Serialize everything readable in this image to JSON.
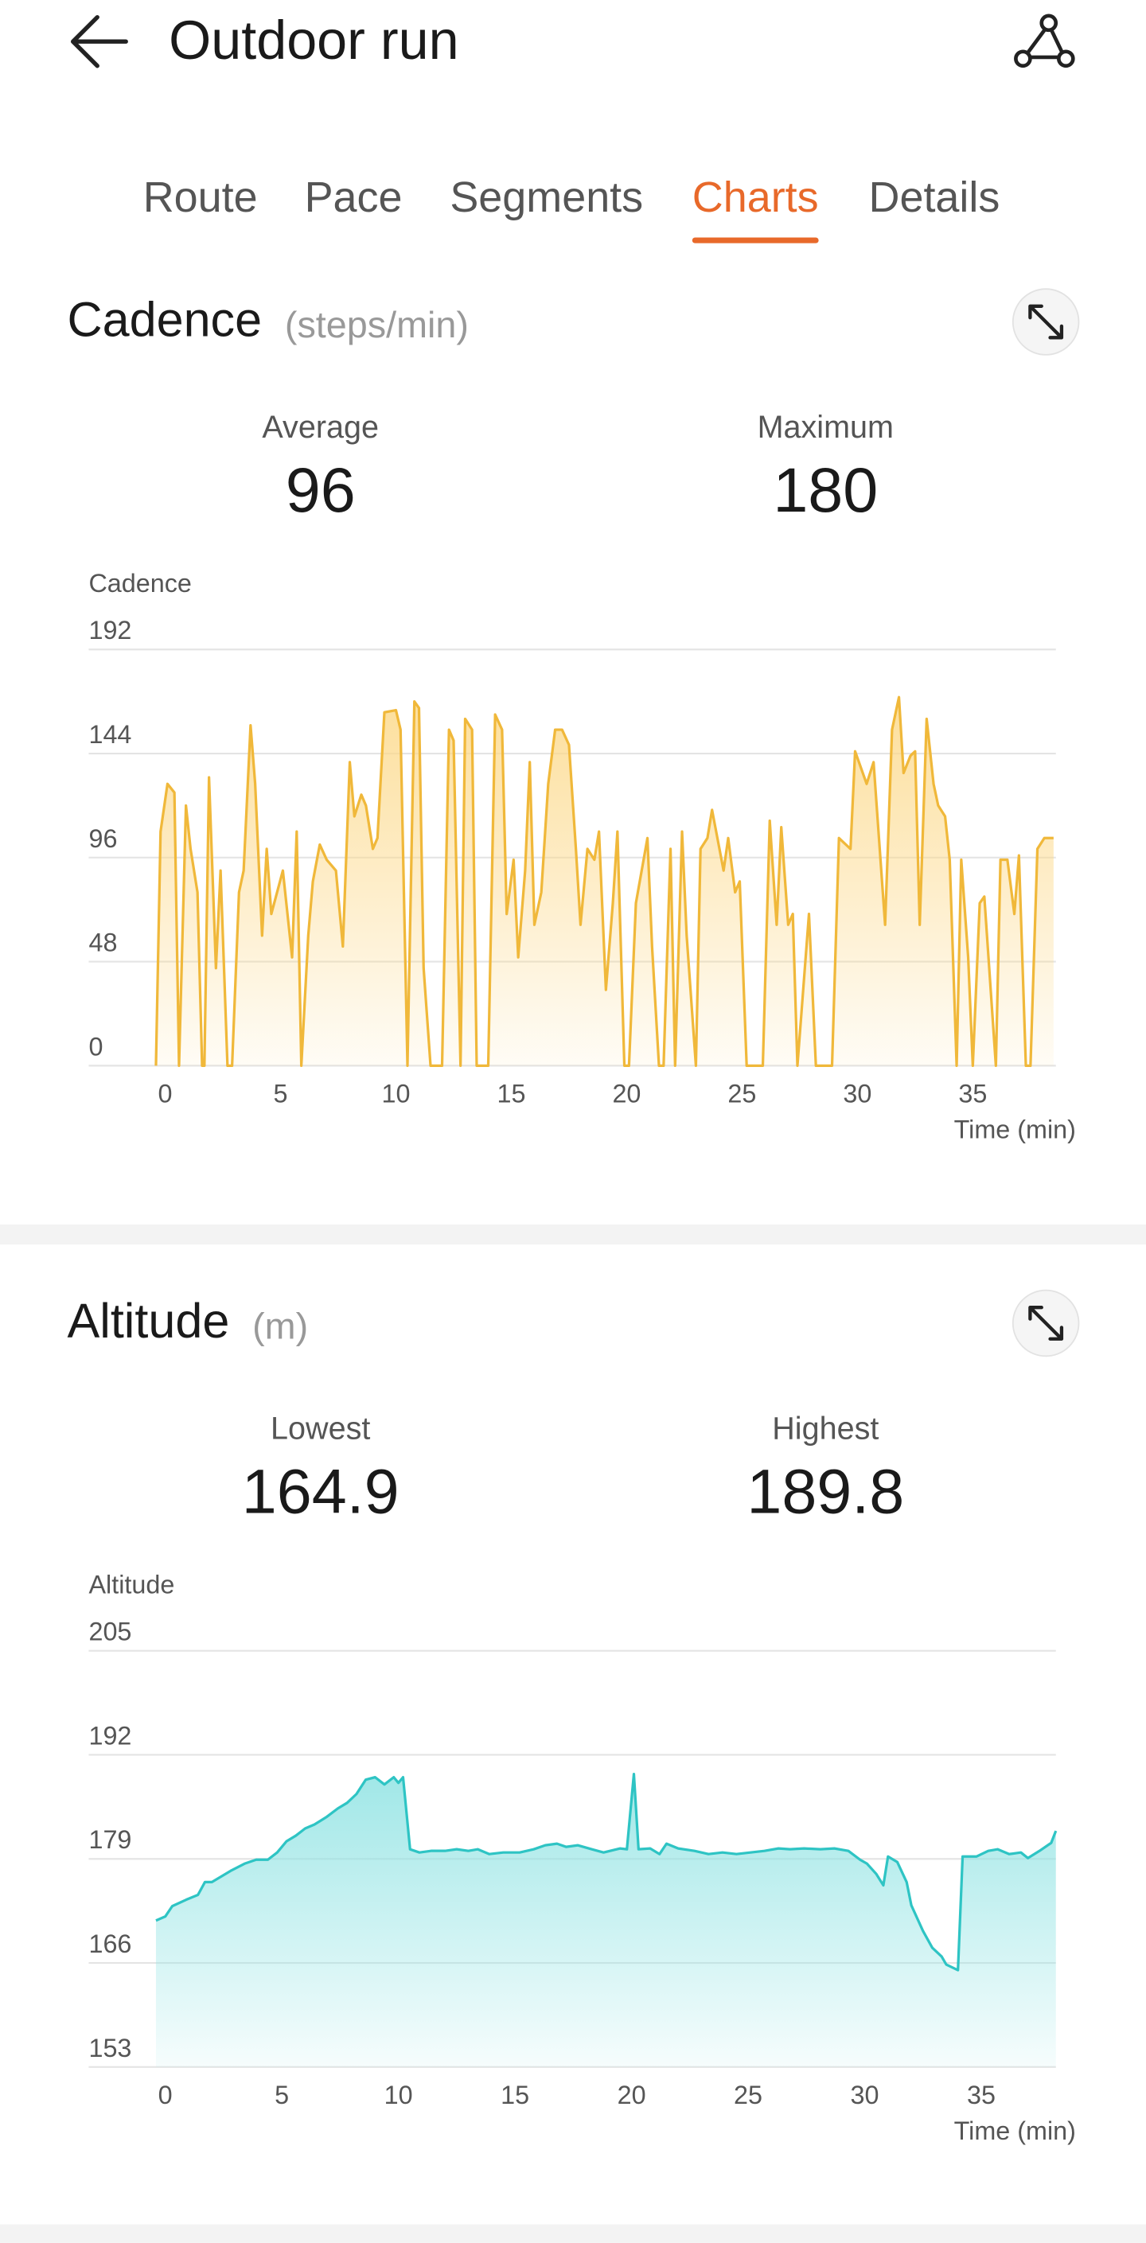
{
  "header": {
    "title": "Outdoor run"
  },
  "tabs": {
    "items": [
      "Route",
      "Pace",
      "Segments",
      "Charts",
      "Details"
    ],
    "active": 3,
    "active_color": "#e8692a"
  },
  "cards": [
    {
      "title": "Cadence",
      "unit": "(steps/min)",
      "stats": [
        {
          "label": "Average",
          "value": 96
        },
        {
          "label": "Maximum",
          "value": 180
        }
      ],
      "chart": {
        "type": "area",
        "y_label": "Cadence",
        "x_label": "Time (min)",
        "color": "#f0b83a",
        "fill": "#fcd98a",
        "ylim": [
          0,
          192
        ],
        "yticks": [
          0,
          48,
          96,
          144,
          192
        ],
        "xlim": [
          -0.4,
          38.6
        ],
        "xticks": [
          0,
          5,
          10,
          15,
          20,
          25,
          30,
          35
        ],
        "x": [
          -0.4,
          -0.2,
          0.1,
          0.4,
          0.6,
          0.9,
          1.1,
          1.4,
          1.6,
          1.7,
          1.9,
          2.2,
          2.4,
          2.7,
          2.9,
          3.2,
          3.4,
          3.7,
          3.9,
          4.2,
          4.4,
          4.6,
          5.1,
          5.5,
          5.7,
          5.9,
          6.2,
          6.4,
          6.7,
          7.0,
          7.4,
          7.7,
          8.0,
          8.2,
          8.5,
          8.7,
          9.0,
          9.2,
          9.5,
          10.0,
          10.2,
          10.5,
          10.8,
          11.0,
          11.2,
          11.5,
          12.0,
          12.3,
          12.5,
          12.8,
          13.0,
          13.3,
          13.5,
          14.0,
          14.3,
          14.6,
          14.8,
          15.1,
          15.3,
          15.6,
          15.8,
          16.0,
          16.3,
          16.6,
          16.9,
          17.2,
          17.5,
          17.8,
          18.0,
          18.3,
          18.6,
          18.8,
          19.1,
          19.4,
          19.6,
          19.9,
          20.1,
          20.4,
          20.9,
          21.1,
          21.4,
          21.6,
          21.9,
          22.1,
          22.4,
          22.6,
          23.0,
          23.2,
          23.5,
          23.7,
          24.2,
          24.4,
          24.7,
          24.9,
          25.2,
          25.9,
          26.2,
          26.5,
          26.7,
          27.0,
          27.2,
          27.4,
          27.9,
          28.2,
          28.9,
          29.2,
          29.7,
          29.9,
          30.4,
          30.7,
          31.2,
          31.5,
          31.8,
          32.0,
          32.3,
          32.5,
          32.7,
          33.0,
          33.3,
          33.5,
          33.8,
          34.0,
          34.3,
          34.5,
          34.8,
          35.0,
          35.3,
          35.5,
          36.0,
          36.2,
          36.5,
          36.8,
          37.0,
          37.3,
          37.5,
          37.8,
          38.1,
          38.5
        ],
        "values": [
          0,
          108,
          130,
          126,
          0,
          120,
          100,
          80,
          0,
          0,
          133,
          45,
          90,
          0,
          0,
          80,
          90,
          157,
          130,
          60,
          100,
          70,
          90,
          50,
          108,
          0,
          60,
          85,
          102,
          95,
          90,
          55,
          140,
          115,
          125,
          120,
          100,
          105,
          163,
          164,
          155,
          0,
          168,
          165,
          45,
          0,
          0,
          155,
          150,
          0,
          160,
          155,
          0,
          0,
          162,
          155,
          70,
          95,
          50,
          90,
          140,
          65,
          80,
          130,
          155,
          155,
          148,
          100,
          65,
          100,
          95,
          108,
          35,
          75,
          108,
          0,
          0,
          75,
          105,
          55,
          0,
          0,
          100,
          0,
          108,
          60,
          0,
          100,
          105,
          118,
          90,
          105,
          80,
          85,
          0,
          0,
          113,
          65,
          110,
          65,
          70,
          0,
          70,
          0,
          0,
          105,
          100,
          145,
          130,
          140,
          65,
          155,
          170,
          135,
          143,
          145,
          65,
          160,
          130,
          120,
          115,
          95,
          0,
          95,
          50,
          0,
          75,
          78,
          0,
          95,
          95,
          70,
          97,
          0,
          0,
          100,
          105,
          105
        ]
      }
    },
    {
      "title": "Altitude",
      "unit": "(m)",
      "stats": [
        {
          "label": "Lowest",
          "value": 164.9
        },
        {
          "label": "Highest",
          "value": 189.8
        }
      ],
      "chart": {
        "type": "area",
        "y_label": "Altitude",
        "x_label": "Time (min)",
        "color": "#2ec4c4",
        "fill": "#8fe3e3",
        "ylim": [
          153,
          205
        ],
        "yticks": [
          153,
          166,
          179,
          192,
          205
        ],
        "xlim": [
          -0.4,
          38.2
        ],
        "xticks": [
          0,
          5,
          10,
          15,
          20,
          25,
          30,
          35
        ],
        "x": [
          -0.4,
          0,
          0.3,
          0.9,
          1.4,
          1.7,
          2.0,
          2.8,
          3.4,
          3.9,
          4.4,
          4.8,
          5.2,
          5.6,
          6.0,
          6.4,
          6.9,
          7.4,
          7.8,
          8.2,
          8.6,
          9.0,
          9.4,
          9.8,
          10.0,
          10.2,
          10.5,
          10.9,
          11.4,
          12.0,
          12.5,
          13.0,
          13.4,
          13.9,
          14.5,
          15.2,
          15.8,
          16.3,
          16.8,
          17.2,
          17.7,
          18.3,
          18.8,
          19.5,
          19.8,
          20.1,
          20.3,
          20.8,
          21.2,
          21.5,
          22.0,
          22.7,
          23.3,
          23.9,
          24.5,
          25.1,
          25.7,
          26.3,
          26.8,
          27.4,
          28.1,
          28.7,
          29.3,
          29.8,
          30.1,
          30.5,
          30.8,
          31.0,
          31.4,
          31.8,
          32.0,
          32.5,
          32.9,
          33.3,
          33.5,
          34.0,
          34.2,
          34.8,
          35.3,
          35.7,
          36.2,
          36.7,
          37.0,
          37.5,
          38.0,
          38.2
        ],
        "values": [
          171.3,
          171.8,
          173.1,
          173.9,
          174.5,
          176.1,
          176.1,
          177.5,
          178.4,
          178.9,
          178.9,
          179.8,
          181.2,
          181.9,
          182.8,
          183.3,
          184.2,
          185.3,
          186.0,
          187.1,
          188.9,
          189.2,
          188.3,
          189.2,
          188.5,
          189.2,
          180.2,
          179.8,
          180.0,
          180.0,
          180.2,
          180.0,
          180.2,
          179.6,
          179.8,
          179.8,
          180.2,
          180.7,
          180.9,
          180.5,
          180.7,
          180.2,
          179.8,
          180.3,
          180.2,
          189.6,
          180.2,
          180.3,
          179.6,
          180.9,
          180.3,
          180.0,
          179.6,
          179.8,
          179.6,
          179.8,
          180.0,
          180.3,
          180.2,
          180.3,
          180.2,
          180.3,
          180.0,
          178.9,
          178.4,
          177.1,
          175.7,
          179.3,
          178.6,
          176.1,
          173.2,
          170.0,
          167.9,
          166.8,
          165.8,
          165.1,
          179.3,
          179.3,
          180.0,
          180.2,
          179.6,
          179.8,
          179.1,
          180.0,
          181.0,
          182.5
        ]
      }
    }
  ]
}
